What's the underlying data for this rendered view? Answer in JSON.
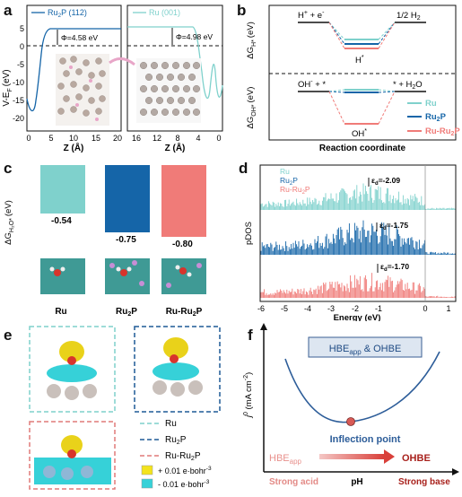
{
  "panel_labels": {
    "a": "a",
    "b": "b",
    "c": "c",
    "d": "d",
    "e": "e",
    "f": "f"
  },
  "colors": {
    "ru": "#7fd1cc",
    "ru2p": "#1565a8",
    "ruru2p": "#f07b78",
    "black": "#111111"
  },
  "panel_a": {
    "ylabel": "V-E",
    "ylabel_sub": "F",
    "ylabel_unit": "(eV)",
    "left_legend": "Ru",
    "left_legend_sub": "2",
    "left_legend_rest": "P (112)",
    "right_legend": "Ru (001)",
    "left_phi": "Φ=4.58 eV",
    "right_phi": "Φ=4.98 eV",
    "xlabel": "Z (Å)",
    "left_yticks": [
      "5",
      "0",
      "-5",
      "-10",
      "-15",
      "-20"
    ],
    "left_xticks": [
      "0",
      "5",
      "10",
      "15",
      "20"
    ],
    "right_xticks": [
      "16",
      "12",
      "8",
      "4",
      "0"
    ]
  },
  "panel_b": {
    "xlabel": "Reaction coordinate",
    "ylabel_top": "ΔG",
    "ylabel_top_sub": "H*",
    "ylabel_top_unit": "(eV)",
    "ylabel_bot": "ΔG",
    "ylabel_bot_sub": "OH*",
    "ylabel_bot_unit": "(eV)",
    "top_left": "H",
    "top_left_rest": " + e",
    "top_right": "1/2 H",
    "top_right_sub": "2",
    "top_mid": "H",
    "bot_left": "OH",
    "bot_left_rest": " + *",
    "bot_right": "* + H",
    "bot_right_sub": "2",
    "bot_right_rest": "O",
    "bot_mid": "OH",
    "legend": [
      {
        "name": "Ru",
        "color": "#7fd1cc"
      },
      {
        "name": "Ru",
        "sub": "2",
        "rest": "P",
        "color": "#1565a8"
      },
      {
        "name": "Ru-Ru",
        "sub": "2",
        "rest": "P",
        "color": "#f07b78"
      }
    ]
  },
  "panel_c": {
    "ylabel": "ΔG",
    "ylabel_sub": "H₂O*",
    "ylabel_unit": "(eV)",
    "chart_data": {
      "type": "bar",
      "categories": [
        "Ru",
        "Ru2P",
        "Ru-Ru2P"
      ],
      "values": [
        -0.54,
        -0.75,
        -0.8
      ],
      "value_labels": [
        "-0.54",
        "-0.75",
        "-0.80"
      ],
      "ylim": [
        -0.8,
        0
      ]
    },
    "cat_labels": [
      {
        "main": "Ru",
        "sub": "",
        "rest": ""
      },
      {
        "main": "Ru",
        "sub": "2",
        "rest": "P"
      },
      {
        "main": "Ru-Ru",
        "sub": "2",
        "rest": "P"
      }
    ]
  },
  "panel_d": {
    "ylabel": "pDOS",
    "xlabel": "Energy (eV)",
    "xticks": [
      "-6",
      "-5",
      "-4",
      "-3",
      "-2",
      "-1",
      "0",
      "1"
    ],
    "legend": [
      {
        "name": "Ru",
        "color": "#7fd1cc"
      },
      {
        "name": "Ru",
        "sub": "2",
        "rest": "P",
        "color": "#1565a8"
      },
      {
        "name": "Ru-Ru",
        "sub": "2",
        "rest": "P",
        "color": "#f07b78"
      }
    ],
    "dband": [
      {
        "label": "ε",
        "sub": "d",
        "value": "=-2.09"
      },
      {
        "label": "ε",
        "sub": "d",
        "value": "=-1.75"
      },
      {
        "label": "ε",
        "sub": "d",
        "value": "=-1.70"
      }
    ]
  },
  "panel_e": {
    "legend": [
      {
        "name": "Ru",
        "color": "#7fd1cc"
      },
      {
        "name": "Ru",
        "sub": "2",
        "rest": "P",
        "color": "#1f5a96"
      },
      {
        "name": "Ru-Ru",
        "sub": "2",
        "rest": "P",
        "color": "#e07a78"
      }
    ],
    "density_pos": "+ 0.01 e·bohr",
    "density_neg": "- 0.01 e·bohr",
    "density_exp": "-3"
  },
  "panel_f": {
    "ylabel": "j",
    "ylabel_sup": "0",
    "ylabel_unit": " (mA cm",
    "ylabel_unit_sup": "-2",
    "ylabel_close": ")",
    "box_title": "HBE",
    "box_title_sub": "app",
    "box_title_rest": " & OHBE",
    "inflection": "Inflection point",
    "left_term": "HBE",
    "left_term_sub": "app",
    "right_term": "OHBE",
    "xlabel": "pH",
    "left_cond": "Strong acid",
    "right_cond": "Strong base"
  }
}
